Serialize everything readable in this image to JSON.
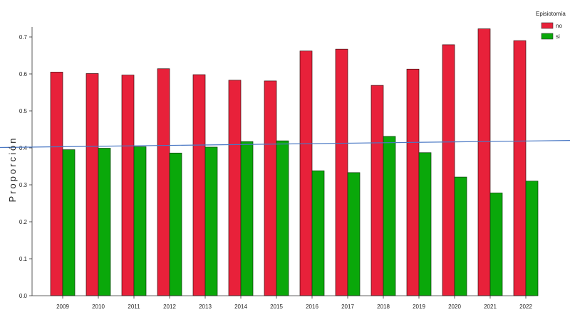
{
  "chart_data": {
    "type": "bar",
    "title": "",
    "xlabel": "",
    "ylabel": "Proporción",
    "categories": [
      "2009",
      "2010",
      "2011",
      "2012",
      "2013",
      "2014",
      "2015",
      "2016",
      "2017",
      "2018",
      "2019",
      "2020",
      "2021",
      "2022"
    ],
    "series": [
      {
        "name": "no",
        "color": "#e8213a",
        "values": [
          0.605,
          0.601,
          0.597,
          0.614,
          0.598,
          0.583,
          0.581,
          0.662,
          0.667,
          0.569,
          0.613,
          0.679,
          0.722,
          0.69
        ]
      },
      {
        "name": "si",
        "color": "#0aa80a",
        "values": [
          0.395,
          0.399,
          0.403,
          0.386,
          0.402,
          0.417,
          0.419,
          0.338,
          0.333,
          0.431,
          0.387,
          0.321,
          0.278,
          0.31
        ]
      }
    ],
    "ylim": [
      0,
      0.7
    ],
    "yticks": [
      "0.0",
      "0.1",
      "0.2",
      "0.3",
      "0.4",
      "0.5",
      "0.6",
      "0.7"
    ],
    "legend": {
      "title": "Episiotomía",
      "placement": "top-right"
    },
    "trend_line": {
      "color": "#4a78c4",
      "start_value": 0.401,
      "end_value": 0.42
    },
    "grid": false
  }
}
